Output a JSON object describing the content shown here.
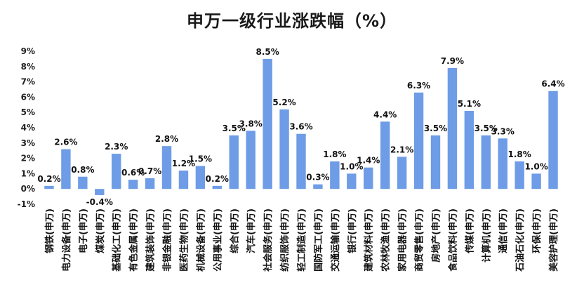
{
  "chart_data": {
    "type": "bar",
    "title": "申万一级行业涨跌幅（%）",
    "xlabel": "",
    "ylabel": "",
    "ylim": [
      -1,
      9
    ],
    "yticks": [
      "-1%",
      "0%",
      "1%",
      "2%",
      "3%",
      "4%",
      "5%",
      "6%",
      "7%",
      "8%",
      "9%"
    ],
    "grid": false,
    "bar_color": "#6e9ce6",
    "categories": [
      "钢铁(申万)",
      "电力设备(申万)",
      "电子(申万)",
      "煤炭(申万)",
      "基础化工(申万)",
      "有色金属(申万)",
      "建筑装饰(申万)",
      "非银金融(申万)",
      "医药生物(申万)",
      "机械设备(申万)",
      "公用事业(申万)",
      "综合(申万)",
      "汽车(申万)",
      "社会服务(申万)",
      "纺织服饰(申万)",
      "轻工制造(申万)",
      "国防军工(申万)",
      "交通运输(申万)",
      "银行(申万)",
      "建筑材料(申万)",
      "农林牧渔(申万)",
      "家用电器(申万)",
      "商贸零售(申万)",
      "房地产(申万)",
      "食品饮料(申万)",
      "传媒(申万)",
      "计算机(申万)",
      "通信(申万)",
      "石油石化(申万)",
      "环保(申万)",
      "美容护理(申万)"
    ],
    "values": [
      0.2,
      2.6,
      0.8,
      -0.4,
      2.3,
      0.6,
      0.7,
      2.8,
      1.2,
      1.5,
      0.2,
      3.5,
      3.8,
      8.5,
      5.2,
      3.6,
      0.3,
      1.8,
      1.0,
      1.4,
      4.4,
      2.1,
      6.3,
      3.5,
      7.9,
      5.1,
      3.5,
      3.3,
      1.8,
      1.0,
      6.4
    ],
    "data_labels": [
      "0.2%",
      "2.6%",
      "0.8%",
      "-0.4%",
      "2.3%",
      "0.6%",
      "0.7%",
      "2.8%",
      "1.2%",
      "1.5%",
      "0.2%",
      "3.5%",
      "3.8%",
      "8.5%",
      "5.2%",
      "3.6%",
      "0.3%",
      "1.8%",
      "1.0%",
      "1.4%",
      "4.4%",
      "2.1%",
      "6.3%",
      "3.5%",
      "7.9%",
      "5.1%",
      "3.5%",
      "3.3%",
      "1.8%",
      "1.0%",
      "6.4%"
    ]
  }
}
